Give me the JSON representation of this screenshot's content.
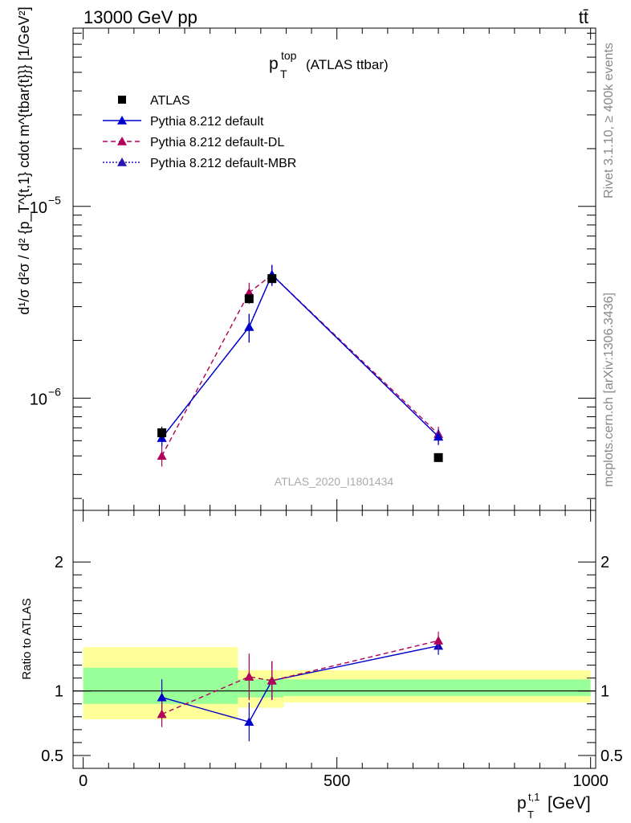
{
  "header": {
    "left": "13000 GeV pp",
    "right": "tt̄"
  },
  "side_text": {
    "rivet": "Rivet 3.1.10, ≥ 400k events",
    "site": "mcplots.cern.ch [arXiv:1306.3436]"
  },
  "colors": {
    "atlas": "#000000",
    "default": "#0000cc",
    "dl": "#b0005a",
    "mbr": "#2a14b0",
    "band_outer": "#ffff99",
    "band_inner": "#99ff99"
  },
  "chart_data": [
    {
      "type": "line",
      "title_main": "p",
      "title_sup": "top",
      "title_sub": "T",
      "title_rest": "(ATLAS ttbar)",
      "watermark": "ATLAS_2020_I1801434",
      "ylabel": "d¹/σ d²σ / d² {p_T^{t,1} cdot m^{tbar{t}}} [1/GeV²]",
      "yscale": "log",
      "ylim": [
        2.6e-07,
        8.5e-05
      ],
      "xlim": [
        -20,
        1010
      ],
      "ytick_labels": [
        {
          "value": 1e-06,
          "base": "10",
          "exp": "−6"
        },
        {
          "value": 1e-05,
          "base": "10",
          "exp": "−5"
        }
      ],
      "legend_position": "top-left",
      "series": [
        {
          "name": "ATLAS",
          "marker": "square",
          "color": "#000000",
          "x": [
            155,
            327,
            372,
            700
          ],
          "y": [
            6.6e-07,
            3.3e-06,
            4.2e-06,
            4.9e-07
          ],
          "err": [
            5e-08,
            1.5e-07,
            2e-07,
            2e-08
          ]
        },
        {
          "name": "Pythia 8.212 default",
          "marker": "triangle",
          "line": "solid",
          "color": "#0000cc",
          "x": [
            155,
            327,
            372,
            700
          ],
          "y": [
            6.2e-07,
            2.35e-06,
            4.4e-06,
            6.3e-07
          ],
          "err": [
            6e-08,
            4e-07,
            5.5e-07,
            6e-08
          ]
        },
        {
          "name": "Pythia 8.212 default-DL",
          "marker": "triangle",
          "line": "dashed",
          "color": "#b0005a",
          "x": [
            155,
            327,
            372,
            700
          ],
          "y": [
            5e-07,
            3.55e-06,
            4.4e-06,
            6.5e-07
          ],
          "err": [
            6e-08,
            4.5e-07,
            5.5e-07,
            6e-08
          ]
        },
        {
          "name": "Pythia 8.212 default-MBR",
          "marker": "triangle",
          "line": "dotted",
          "color": "#2a14b0",
          "x": [
            155,
            327,
            372,
            700
          ],
          "y": [
            6.2e-07,
            2.35e-06,
            4.4e-06,
            6.3e-07
          ],
          "err": [
            6e-08,
            4e-07,
            5.5e-07,
            6e-08
          ]
        }
      ]
    },
    {
      "type": "line",
      "ylabel": "Ratio to ATLAS",
      "xlabel_main": "p",
      "xlabel_sup": "t,1",
      "xlabel_sub": "T",
      "xlabel_unit": "[GeV]",
      "ylim": [
        0.4,
        2.4
      ],
      "xlim": [
        -20,
        1010
      ],
      "x_ticks": [
        0,
        500,
        1000
      ],
      "x_tick_labels": [
        "0",
        "500",
        "1000"
      ],
      "y_ticks": [
        0.5,
        1,
        2
      ],
      "y_tick_labels": [
        "0.5",
        "1",
        "2"
      ],
      "bands": [
        {
          "x0": 0,
          "x1": 305,
          "outer": [
            0.78,
            1.34
          ],
          "inner": [
            0.9,
            1.18
          ]
        },
        {
          "x0": 305,
          "x1": 395,
          "outer": [
            0.87,
            1.16
          ],
          "inner": [
            0.95,
            1.09
          ]
        },
        {
          "x0": 395,
          "x1": 1000,
          "outer": [
            0.91,
            1.16
          ],
          "inner": [
            0.96,
            1.09
          ]
        }
      ],
      "series": [
        {
          "name": "Pythia 8.212 default",
          "color": "#0000cc",
          "line": "solid",
          "x": [
            155,
            327,
            372,
            700
          ],
          "y": [
            0.95,
            0.76,
            1.08,
            1.35
          ],
          "err": [
            0.14,
            0.15,
            0.15,
            0.07
          ]
        },
        {
          "name": "Pythia 8.212 default-DL",
          "color": "#b0005a",
          "line": "dashed",
          "x": [
            155,
            327,
            372,
            700
          ],
          "y": [
            0.82,
            1.11,
            1.08,
            1.39
          ],
          "err": [
            0.1,
            0.18,
            0.15,
            0.07
          ]
        }
      ]
    }
  ]
}
